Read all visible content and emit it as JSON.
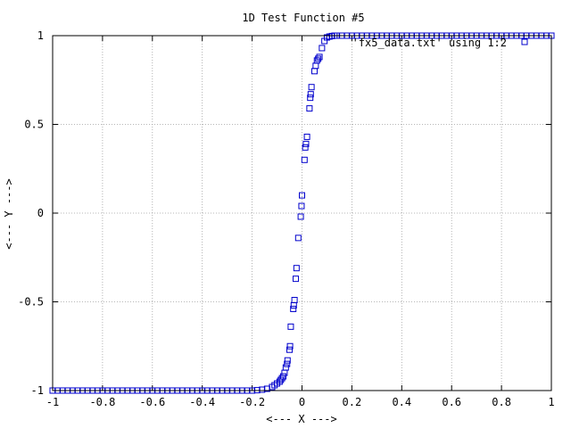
{
  "chart_data": {
    "type": "scatter",
    "title": "1D Test Function #5",
    "xlabel": "<--- X --->",
    "ylabel": "<--- Y --->",
    "xlim": [
      -1,
      1
    ],
    "ylim": [
      -1,
      1
    ],
    "x_ticks": [
      "-1",
      "-0.8",
      "-0.6",
      "-0.4",
      "-0.2",
      "0",
      "0.2",
      "0.4",
      "0.6",
      "0.8",
      "1"
    ],
    "y_ticks": [
      "-1",
      "-0.5",
      "0",
      "0.5",
      "1"
    ],
    "grid": true,
    "legend_position": "top-right",
    "marker": "open-square",
    "color": "#0000cc",
    "series": [
      {
        "name": "'fx5_data.txt' using 1:2",
        "points": [
          [
            -1.0,
            -1
          ],
          [
            -0.98,
            -1
          ],
          [
            -0.96,
            -1
          ],
          [
            -0.94,
            -1
          ],
          [
            -0.92,
            -1
          ],
          [
            -0.9,
            -1
          ],
          [
            -0.88,
            -1
          ],
          [
            -0.86,
            -1
          ],
          [
            -0.84,
            -1
          ],
          [
            -0.82,
            -1
          ],
          [
            -0.8,
            -1
          ],
          [
            -0.78,
            -1
          ],
          [
            -0.76,
            -1
          ],
          [
            -0.74,
            -1
          ],
          [
            -0.72,
            -1
          ],
          [
            -0.7,
            -1
          ],
          [
            -0.68,
            -1
          ],
          [
            -0.66,
            -1
          ],
          [
            -0.64,
            -1
          ],
          [
            -0.62,
            -1
          ],
          [
            -0.6,
            -1
          ],
          [
            -0.58,
            -1
          ],
          [
            -0.56,
            -1
          ],
          [
            -0.54,
            -1
          ],
          [
            -0.52,
            -1
          ],
          [
            -0.5,
            -1
          ],
          [
            -0.48,
            -1
          ],
          [
            -0.46,
            -1
          ],
          [
            -0.44,
            -1
          ],
          [
            -0.42,
            -1
          ],
          [
            -0.4,
            -1
          ],
          [
            -0.38,
            -1
          ],
          [
            -0.36,
            -1
          ],
          [
            -0.34,
            -1
          ],
          [
            -0.32,
            -1
          ],
          [
            -0.3,
            -1
          ],
          [
            -0.28,
            -1
          ],
          [
            -0.26,
            -1
          ],
          [
            -0.24,
            -1
          ],
          [
            -0.22,
            -1
          ],
          [
            -0.2,
            -1
          ],
          [
            -0.18,
            -0.998
          ],
          [
            -0.16,
            -0.995
          ],
          [
            -0.14,
            -0.99
          ],
          [
            -0.12,
            -0.98
          ],
          [
            -0.11,
            -0.97
          ],
          [
            -0.1,
            -0.96
          ],
          [
            -0.09,
            -0.95
          ],
          [
            -0.085,
            -0.94
          ],
          [
            -0.08,
            -0.93
          ],
          [
            -0.075,
            -0.92
          ],
          [
            -0.07,
            -0.9
          ],
          [
            -0.065,
            -0.87
          ],
          [
            -0.06,
            -0.85
          ],
          [
            -0.058,
            -0.83
          ],
          [
            -0.05,
            -0.77
          ],
          [
            -0.048,
            -0.75
          ],
          [
            -0.045,
            -0.64
          ],
          [
            -0.035,
            -0.54
          ],
          [
            -0.033,
            -0.52
          ],
          [
            -0.03,
            -0.49
          ],
          [
            -0.025,
            -0.37
          ],
          [
            -0.022,
            -0.31
          ],
          [
            -0.015,
            -0.14
          ],
          [
            -0.005,
            -0.02
          ],
          [
            -0.002,
            0.04
          ],
          [
            0.0,
            0.1
          ],
          [
            0.01,
            0.3
          ],
          [
            0.013,
            0.37
          ],
          [
            0.016,
            0.39
          ],
          [
            0.02,
            0.43
          ],
          [
            0.03,
            0.59
          ],
          [
            0.033,
            0.65
          ],
          [
            0.035,
            0.67
          ],
          [
            0.038,
            0.71
          ],
          [
            0.05,
            0.8
          ],
          [
            0.055,
            0.83
          ],
          [
            0.06,
            0.86
          ],
          [
            0.065,
            0.87
          ],
          [
            0.07,
            0.88
          ],
          [
            0.08,
            0.93
          ],
          [
            0.09,
            0.97
          ],
          [
            0.1,
            0.99
          ],
          [
            0.11,
            0.995
          ],
          [
            0.12,
            0.998
          ],
          [
            0.13,
            1
          ],
          [
            0.14,
            1
          ],
          [
            0.16,
            1
          ],
          [
            0.18,
            1
          ],
          [
            0.2,
            1
          ],
          [
            0.22,
            1
          ],
          [
            0.24,
            1
          ],
          [
            0.26,
            1
          ],
          [
            0.28,
            1
          ],
          [
            0.3,
            1
          ],
          [
            0.32,
            1
          ],
          [
            0.34,
            1
          ],
          [
            0.36,
            1
          ],
          [
            0.38,
            1
          ],
          [
            0.4,
            1
          ],
          [
            0.42,
            1
          ],
          [
            0.44,
            1
          ],
          [
            0.46,
            1
          ],
          [
            0.48,
            1
          ],
          [
            0.5,
            1
          ],
          [
            0.52,
            1
          ],
          [
            0.54,
            1
          ],
          [
            0.56,
            1
          ],
          [
            0.58,
            1
          ],
          [
            0.6,
            1
          ],
          [
            0.62,
            1
          ],
          [
            0.64,
            1
          ],
          [
            0.66,
            1
          ],
          [
            0.68,
            1
          ],
          [
            0.7,
            1
          ],
          [
            0.72,
            1
          ],
          [
            0.74,
            1
          ],
          [
            0.76,
            1
          ],
          [
            0.78,
            1
          ],
          [
            0.8,
            1
          ],
          [
            0.82,
            1
          ],
          [
            0.84,
            1
          ],
          [
            0.86,
            1
          ],
          [
            0.88,
            1
          ],
          [
            0.9,
            1
          ],
          [
            0.92,
            1
          ],
          [
            0.94,
            1
          ],
          [
            0.96,
            1
          ],
          [
            0.98,
            1
          ],
          [
            1.0,
            1
          ]
        ]
      }
    ]
  }
}
